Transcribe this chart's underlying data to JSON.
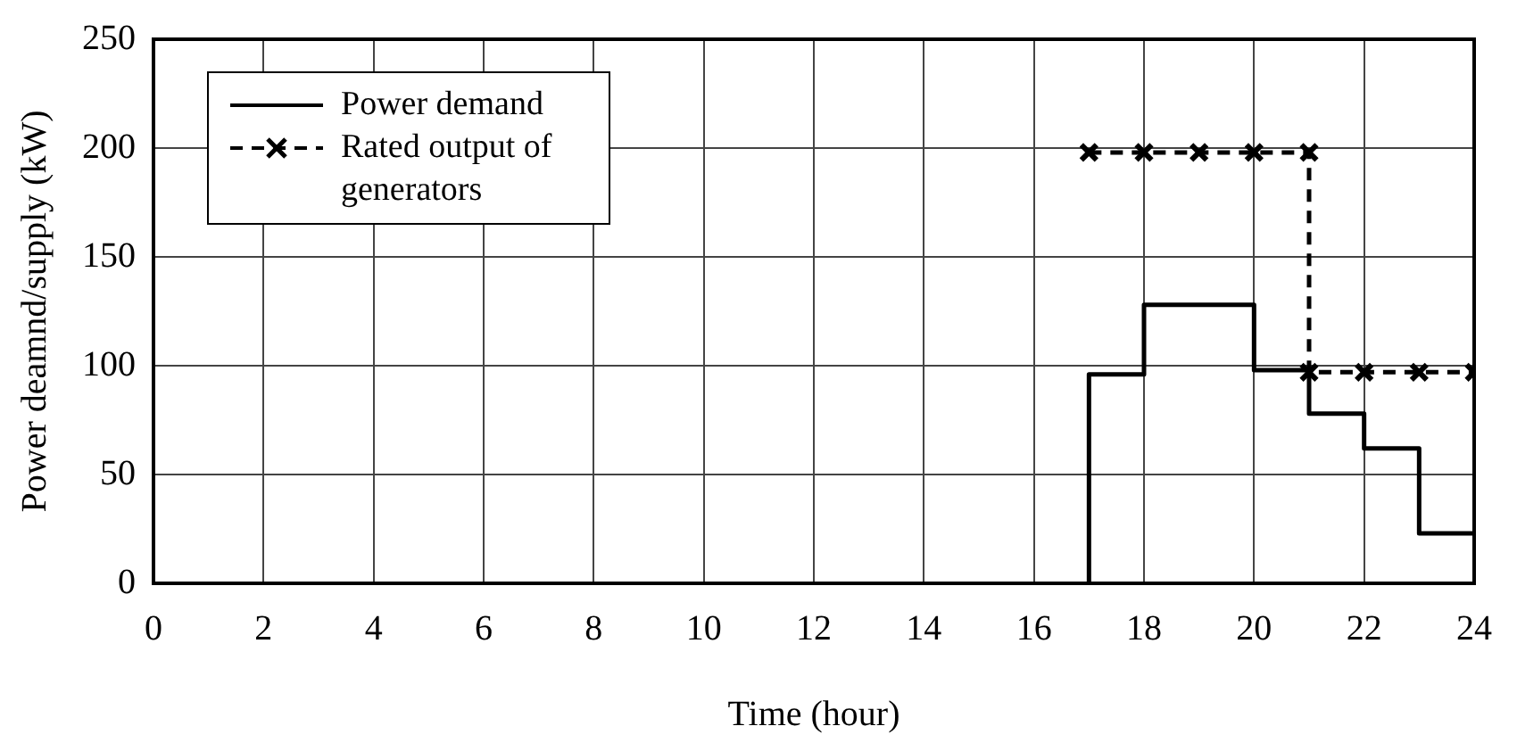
{
  "chart_data": {
    "type": "line",
    "xlabel": "Time (hour)",
    "ylabel": "Power deamnd/supply (kW)",
    "xlim": [
      0,
      24
    ],
    "xticks": [
      0,
      2,
      4,
      6,
      8,
      10,
      12,
      14,
      16,
      18,
      20,
      22,
      24
    ],
    "ylim": [
      0,
      250
    ],
    "yticks": [
      0,
      50,
      100,
      150,
      200,
      250
    ],
    "grid": true,
    "legend": "top left",
    "series": [
      {
        "name": "Power demand",
        "type": "step",
        "color": "#000000",
        "line_style": "solid",
        "marker": "none",
        "x": [
          17,
          17,
          18,
          20,
          21,
          22,
          23,
          24
        ],
        "values": [
          0,
          96,
          128,
          98,
          78,
          62,
          23,
          23
        ]
      },
      {
        "name": "Rated output of generators",
        "type": "line",
        "color": "#000000",
        "line_style": "dashed",
        "marker": "cross",
        "x": [
          17,
          18,
          19,
          20,
          21,
          21,
          22,
          23,
          24
        ],
        "values": [
          198,
          198,
          198,
          198,
          198,
          97,
          97,
          97,
          97
        ]
      }
    ]
  }
}
